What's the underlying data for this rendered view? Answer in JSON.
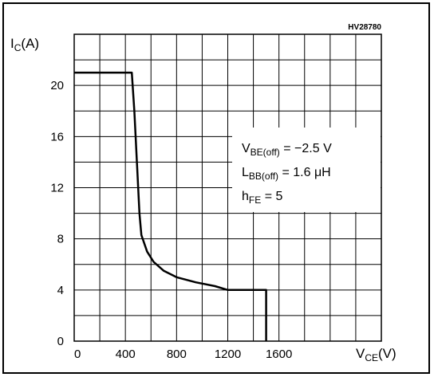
{
  "chart_data": {
    "type": "line",
    "code": "HV28780",
    "ylabel": {
      "main": "I",
      "sub": "C",
      "unit": "(A)"
    },
    "xlabel": {
      "main": "V",
      "sub": "CE",
      "unit": "(V)"
    },
    "xlim": [
      0,
      2400
    ],
    "ylim": [
      0,
      24
    ],
    "x_ticks": [
      0,
      400,
      800,
      1200,
      1600
    ],
    "y_ticks": [
      0,
      4,
      8,
      12,
      16,
      20
    ],
    "x_minor_step": 200,
    "y_minor_step": 2,
    "grid": true,
    "annotations": [
      {
        "main": "V",
        "sub": "BE(off)",
        "rest": " = −2.5 V"
      },
      {
        "main": "L",
        "sub": "BB(off)",
        "rest": " = 1.6 μH"
      },
      {
        "main": "h",
        "sub": "FE",
        "rest": " = 5"
      }
    ],
    "series": [
      {
        "color": "#000000",
        "points": [
          [
            0,
            21
          ],
          [
            450,
            21
          ],
          [
            470,
            18
          ],
          [
            490,
            14
          ],
          [
            510,
            10
          ],
          [
            525,
            8.3
          ],
          [
            570,
            7.0
          ],
          [
            620,
            6.2
          ],
          [
            700,
            5.5
          ],
          [
            800,
            5.0
          ],
          [
            950,
            4.6
          ],
          [
            1100,
            4.3
          ],
          [
            1200,
            4.0
          ],
          [
            1500,
            4.0
          ],
          [
            1500,
            0
          ]
        ]
      }
    ]
  }
}
